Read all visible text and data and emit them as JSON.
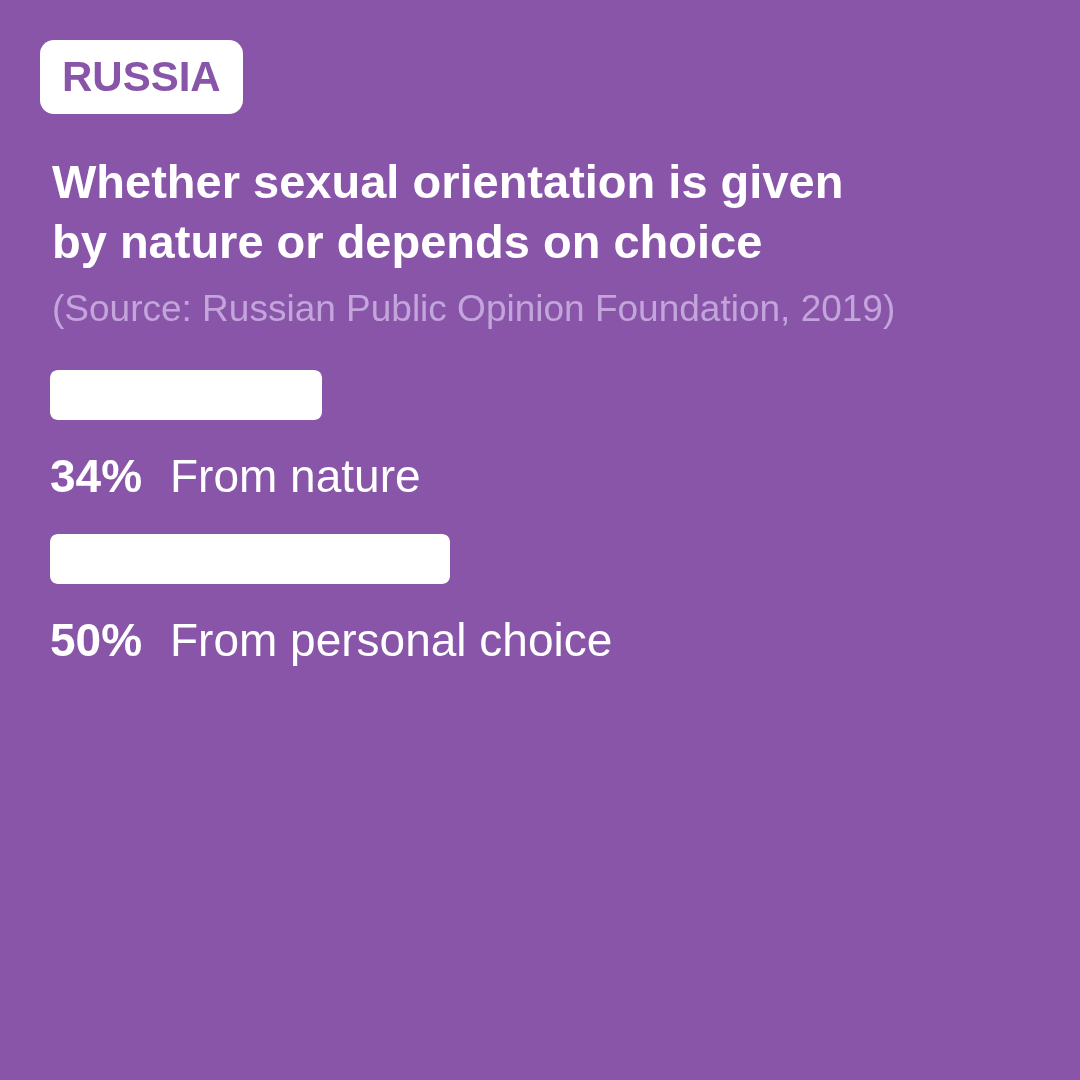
{
  "chart_data": {
    "type": "bar",
    "orientation": "horizontal",
    "subtitle": "RUSSIA",
    "title": "Whether sexual orientation is given by nature or depends on choice",
    "annotations": [
      "(Source: Russian Public Opinion Foundation, 2019)"
    ],
    "categories": [
      "From nature",
      "From personal choice"
    ],
    "values": [
      34,
      50
    ],
    "value_labels": [
      "34%",
      "50%"
    ],
    "color": "#ffffff"
  }
}
